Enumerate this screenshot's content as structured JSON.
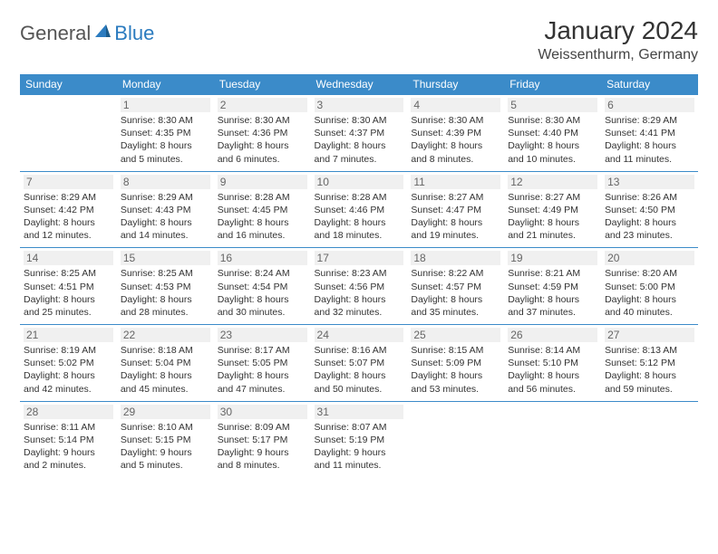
{
  "logo": {
    "part1": "General",
    "part2": "Blue"
  },
  "title": "January 2024",
  "location": "Weissenthurm, Germany",
  "colors": {
    "header_bg": "#3b8bc9",
    "header_fg": "#ffffff",
    "border": "#3b8bc9",
    "daynum_bg": "#f0f0f0",
    "logo_blue": "#2b7bbf"
  },
  "weekdays": [
    "Sunday",
    "Monday",
    "Tuesday",
    "Wednesday",
    "Thursday",
    "Friday",
    "Saturday"
  ],
  "weeks": [
    [
      null,
      {
        "n": "1",
        "sr": "8:30 AM",
        "ss": "4:35 PM",
        "dl": "8 hours and 5 minutes."
      },
      {
        "n": "2",
        "sr": "8:30 AM",
        "ss": "4:36 PM",
        "dl": "8 hours and 6 minutes."
      },
      {
        "n": "3",
        "sr": "8:30 AM",
        "ss": "4:37 PM",
        "dl": "8 hours and 7 minutes."
      },
      {
        "n": "4",
        "sr": "8:30 AM",
        "ss": "4:39 PM",
        "dl": "8 hours and 8 minutes."
      },
      {
        "n": "5",
        "sr": "8:30 AM",
        "ss": "4:40 PM",
        "dl": "8 hours and 10 minutes."
      },
      {
        "n": "6",
        "sr": "8:29 AM",
        "ss": "4:41 PM",
        "dl": "8 hours and 11 minutes."
      }
    ],
    [
      {
        "n": "7",
        "sr": "8:29 AM",
        "ss": "4:42 PM",
        "dl": "8 hours and 12 minutes."
      },
      {
        "n": "8",
        "sr": "8:29 AM",
        "ss": "4:43 PM",
        "dl": "8 hours and 14 minutes."
      },
      {
        "n": "9",
        "sr": "8:28 AM",
        "ss": "4:45 PM",
        "dl": "8 hours and 16 minutes."
      },
      {
        "n": "10",
        "sr": "8:28 AM",
        "ss": "4:46 PM",
        "dl": "8 hours and 18 minutes."
      },
      {
        "n": "11",
        "sr": "8:27 AM",
        "ss": "4:47 PM",
        "dl": "8 hours and 19 minutes."
      },
      {
        "n": "12",
        "sr": "8:27 AM",
        "ss": "4:49 PM",
        "dl": "8 hours and 21 minutes."
      },
      {
        "n": "13",
        "sr": "8:26 AM",
        "ss": "4:50 PM",
        "dl": "8 hours and 23 minutes."
      }
    ],
    [
      {
        "n": "14",
        "sr": "8:25 AM",
        "ss": "4:51 PM",
        "dl": "8 hours and 25 minutes."
      },
      {
        "n": "15",
        "sr": "8:25 AM",
        "ss": "4:53 PM",
        "dl": "8 hours and 28 minutes."
      },
      {
        "n": "16",
        "sr": "8:24 AM",
        "ss": "4:54 PM",
        "dl": "8 hours and 30 minutes."
      },
      {
        "n": "17",
        "sr": "8:23 AM",
        "ss": "4:56 PM",
        "dl": "8 hours and 32 minutes."
      },
      {
        "n": "18",
        "sr": "8:22 AM",
        "ss": "4:57 PM",
        "dl": "8 hours and 35 minutes."
      },
      {
        "n": "19",
        "sr": "8:21 AM",
        "ss": "4:59 PM",
        "dl": "8 hours and 37 minutes."
      },
      {
        "n": "20",
        "sr": "8:20 AM",
        "ss": "5:00 PM",
        "dl": "8 hours and 40 minutes."
      }
    ],
    [
      {
        "n": "21",
        "sr": "8:19 AM",
        "ss": "5:02 PM",
        "dl": "8 hours and 42 minutes."
      },
      {
        "n": "22",
        "sr": "8:18 AM",
        "ss": "5:04 PM",
        "dl": "8 hours and 45 minutes."
      },
      {
        "n": "23",
        "sr": "8:17 AM",
        "ss": "5:05 PM",
        "dl": "8 hours and 47 minutes."
      },
      {
        "n": "24",
        "sr": "8:16 AM",
        "ss": "5:07 PM",
        "dl": "8 hours and 50 minutes."
      },
      {
        "n": "25",
        "sr": "8:15 AM",
        "ss": "5:09 PM",
        "dl": "8 hours and 53 minutes."
      },
      {
        "n": "26",
        "sr": "8:14 AM",
        "ss": "5:10 PM",
        "dl": "8 hours and 56 minutes."
      },
      {
        "n": "27",
        "sr": "8:13 AM",
        "ss": "5:12 PM",
        "dl": "8 hours and 59 minutes."
      }
    ],
    [
      {
        "n": "28",
        "sr": "8:11 AM",
        "ss": "5:14 PM",
        "dl": "9 hours and 2 minutes."
      },
      {
        "n": "29",
        "sr": "8:10 AM",
        "ss": "5:15 PM",
        "dl": "9 hours and 5 minutes."
      },
      {
        "n": "30",
        "sr": "8:09 AM",
        "ss": "5:17 PM",
        "dl": "9 hours and 8 minutes."
      },
      {
        "n": "31",
        "sr": "8:07 AM",
        "ss": "5:19 PM",
        "dl": "9 hours and 11 minutes."
      },
      null,
      null,
      null
    ]
  ]
}
